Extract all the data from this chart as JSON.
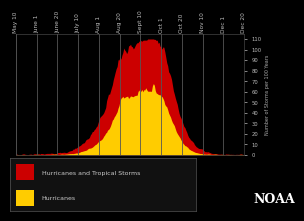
{
  "background_color": "#000000",
  "plot_bg_color": "#000000",
  "text_color": "#cccccc",
  "tick_label_color": "#bbbbbb",
  "ylim": [
    0,
    115
  ],
  "yticks": [
    0,
    10,
    20,
    30,
    40,
    50,
    60,
    70,
    80,
    90,
    100,
    110
  ],
  "ylabel": "Number of Storms per 100 Years",
  "ylabel_color": "#aaaaaa",
  "grid_color": "#555555",
  "x_labels": [
    "May 10",
    "June 1",
    "June 20",
    "July 10",
    "Aug 1",
    "Aug 20",
    "Sept 10",
    "Oct 1",
    "Oct 20",
    "Nov 10",
    "Dec 1",
    "Dec 20"
  ],
  "noaa_text": "NOAA",
  "legend_labels": [
    "Hurricanes and Tropical Storms",
    "Hurricanes"
  ],
  "legend_colors": [
    "#cc0000",
    "#ffcc00"
  ],
  "total_color": "#cc0000",
  "hurricane_color": "#ffcc00",
  "n_points": 240,
  "total_data": [
    0,
    0,
    0,
    0,
    0,
    0,
    0,
    0,
    0,
    0,
    1,
    1,
    1,
    2,
    2,
    2,
    3,
    3,
    3,
    3,
    4,
    4,
    4,
    4,
    4,
    4,
    5,
    5,
    5,
    5,
    5,
    5,
    6,
    6,
    6,
    6,
    6,
    7,
    7,
    7,
    8,
    8,
    9,
    9,
    10,
    10,
    11,
    11,
    12,
    12,
    13,
    14,
    15,
    16,
    17,
    18,
    19,
    20,
    22,
    24,
    26,
    28,
    30,
    32,
    34,
    36,
    38,
    40,
    42,
    44,
    46,
    48,
    50,
    52,
    54,
    56,
    58,
    60,
    62,
    64,
    66,
    68,
    70,
    72,
    74,
    76,
    78,
    80,
    82,
    84,
    86,
    88,
    90,
    91,
    92,
    93,
    94,
    95,
    96,
    97,
    98,
    99,
    100,
    101,
    100,
    98,
    96,
    102,
    108,
    105,
    100,
    96,
    92,
    88,
    84,
    80,
    76,
    72,
    70,
    68,
    66,
    64,
    62,
    60,
    58,
    56,
    54,
    52,
    50,
    48,
    46,
    44,
    42,
    41,
    40,
    39,
    38,
    37,
    36,
    35,
    34,
    33,
    32,
    31,
    30,
    29,
    28,
    27,
    26,
    25,
    24,
    23,
    22,
    21,
    20,
    19,
    18,
    17,
    16,
    15,
    14,
    13,
    12,
    11,
    10,
    9,
    8,
    7,
    6,
    5,
    4,
    3,
    3,
    2,
    2,
    2,
    2,
    2,
    2,
    2,
    2,
    2,
    2,
    2,
    2,
    2,
    2,
    2,
    1,
    1,
    1,
    1,
    1,
    1,
    1,
    1,
    1,
    1,
    1,
    0,
    0,
    0,
    0,
    0,
    0,
    0,
    0,
    0,
    0,
    0,
    0,
    0,
    0,
    0,
    0,
    0,
    0,
    0,
    0,
    0,
    0,
    0,
    0,
    0,
    0,
    0,
    0,
    0,
    0,
    0,
    0,
    0,
    0,
    0,
    0,
    0,
    0,
    0,
    0,
    0
  ],
  "hurr_data": [
    0,
    0,
    0,
    0,
    0,
    0,
    0,
    0,
    0,
    0,
    0,
    0,
    0,
    0,
    0,
    0,
    0,
    0,
    0,
    0,
    0,
    0,
    0,
    0,
    0,
    0,
    0,
    0,
    0,
    0,
    0,
    0,
    0,
    1,
    1,
    1,
    1,
    1,
    1,
    1,
    2,
    2,
    2,
    2,
    3,
    3,
    3,
    3,
    4,
    4,
    4,
    5,
    5,
    6,
    7,
    8,
    9,
    10,
    12,
    14,
    16,
    18,
    20,
    22,
    24,
    26,
    28,
    30,
    32,
    34,
    36,
    38,
    40,
    42,
    44,
    46,
    48,
    50,
    50,
    50,
    48,
    48,
    47,
    47,
    48,
    50,
    52,
    54,
    55,
    55,
    54,
    53,
    52,
    51,
    50,
    49,
    48,
    47,
    46,
    45,
    44,
    43,
    42,
    41,
    41,
    42,
    43,
    45,
    48,
    48,
    46,
    44,
    42,
    40,
    38,
    36,
    34,
    32,
    30,
    28,
    26,
    24,
    22,
    21,
    20,
    19,
    18,
    17,
    16,
    15,
    14,
    13,
    12,
    11,
    10,
    9,
    8,
    7,
    6,
    5,
    5,
    5,
    5,
    5,
    5,
    5,
    5,
    4,
    4,
    4,
    4,
    4,
    4,
    3,
    3,
    3,
    3,
    3,
    3,
    3,
    3,
    2,
    2,
    2,
    2,
    2,
    2,
    2,
    2,
    2,
    2,
    2,
    2,
    2,
    1,
    1,
    1,
    1,
    1,
    1,
    1,
    1,
    1,
    1,
    1,
    1,
    1,
    1,
    0,
    0,
    0,
    0,
    0,
    0,
    0,
    0,
    0,
    0,
    0,
    0,
    0,
    0,
    0,
    0,
    0,
    0,
    0,
    0,
    0,
    0,
    0,
    0,
    0,
    0,
    0,
    0,
    0,
    0,
    0,
    0,
    0,
    0,
    0,
    0,
    0,
    0,
    0,
    0,
    0,
    0,
    0,
    0,
    0,
    0,
    0,
    0,
    0,
    0,
    0,
    0
  ]
}
